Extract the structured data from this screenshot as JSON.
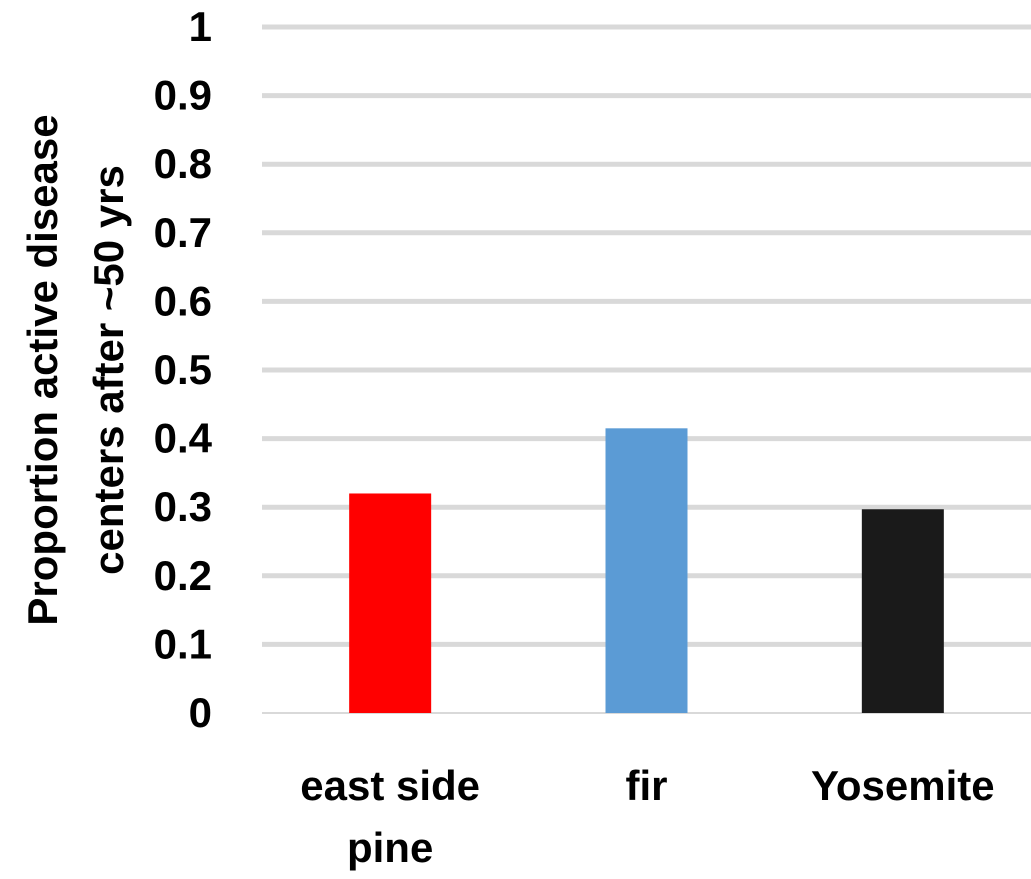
{
  "chart_data": {
    "type": "bar",
    "categories": [
      [
        "east side",
        "pine"
      ],
      [
        "fir"
      ],
      [
        "Yosemite"
      ]
    ],
    "values": [
      0.32,
      0.415,
      0.297
    ],
    "colors": [
      "#ff0000",
      "#5b9bd5",
      "#1a1a1a"
    ],
    "ylabel": [
      "Proportion active disease",
      "centers after ~50 yrs"
    ],
    "ylim": [
      0,
      1
    ],
    "yticks": [
      "0",
      "0.1",
      "0.2",
      "0.3",
      "0.4",
      "0.5",
      "0.6",
      "0.7",
      "0.8",
      "0.9",
      "1"
    ],
    "grid": true,
    "grid_color": "#d9d9d9"
  }
}
